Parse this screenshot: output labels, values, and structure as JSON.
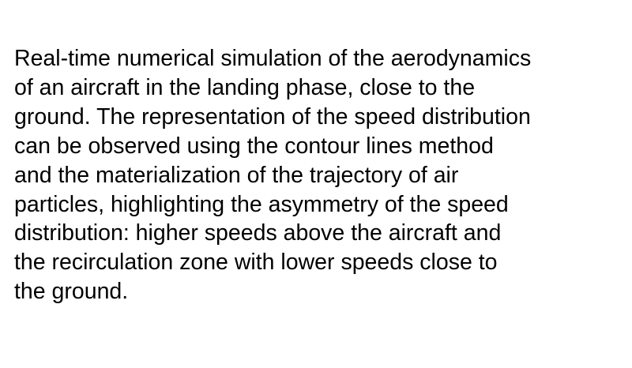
{
  "text": {
    "lines": [
      "Real-time numerical simulation of the aerodynamics",
      "of an aircraft in the landing phase, close to the",
      "ground. The representation of the speed distribution",
      "can be observed using the contour lines method",
      "and the materialization of the trajectory of air",
      "particles, highlighting the asymmetry of the speed",
      "distribution: higher speeds above the aircraft and",
      "the recirculation zone with lower speeds close to",
      "the ground."
    ]
  },
  "colors": {
    "text": "#000000",
    "background": "#ffffff"
  }
}
